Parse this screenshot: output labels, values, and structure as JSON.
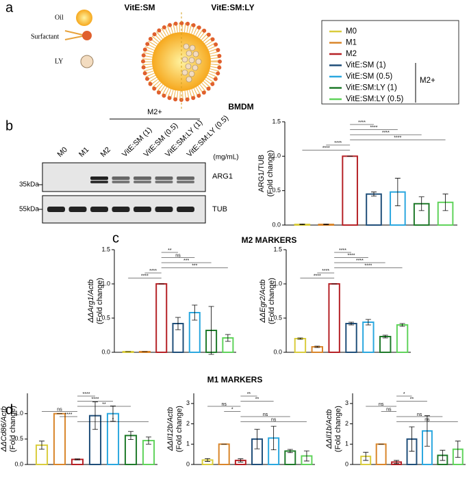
{
  "panels": {
    "a": "a",
    "b": "b",
    "c": "c",
    "d": "d"
  },
  "schematic": {
    "oil": "Oil",
    "surfactant": "Surfactant",
    "ly": "LY",
    "vitesm": "VitE:SM",
    "vitesmly": "VitE:SM:LY"
  },
  "legend": {
    "items": [
      {
        "name": "M0",
        "color": "#d9cc3c"
      },
      {
        "name": "M1",
        "color": "#d9852a"
      },
      {
        "name": "M2",
        "color": "#b52025"
      },
      {
        "name": "VitE:SM (1)",
        "color": "#1f4e79"
      },
      {
        "name": "VitE:SM (0.5)",
        "color": "#2aa7df"
      },
      {
        "name": "VitE:SM:LY (1)",
        "color": "#1f7a2a"
      },
      {
        "name": "VitE:SM:LY (0.5)",
        "color": "#5fd35a"
      }
    ],
    "group": "M2+"
  },
  "blot": {
    "title": "BMDM",
    "group": "M2+",
    "lanes": [
      "M0",
      "M1",
      "M2",
      "VitE:SM (1)",
      "VitE:SM (0.5)",
      "VitE:SM:LY (1)",
      "VitE:SM:LY (0.5)"
    ],
    "unit": "(mg/mL)",
    "bands": [
      {
        "name": "ARG1",
        "marker": "35kDa"
      },
      {
        "name": "TUB",
        "marker": "55kDa"
      }
    ]
  },
  "sections": {
    "c": "M2 MARKERS",
    "d": "M1 MARKERS"
  },
  "chart_data": [
    {
      "type": "bar",
      "ylabel": [
        "ARG1/TUB",
        "(Fold change)"
      ],
      "values": [
        0.01,
        0.01,
        1.0,
        0.45,
        0.48,
        0.31,
        0.33
      ],
      "errors": [
        0.005,
        0.005,
        0,
        0.03,
        0.2,
        0.1,
        0.12
      ],
      "ylim": [
        0,
        1.5
      ],
      "yticks": [
        {
          "value": 0,
          "label": "0.0"
        },
        {
          "value": 0.5,
          "label": "0.5"
        },
        {
          "value": 1,
          "label": "1.0"
        },
        {
          "value": 1.5,
          "label": "1.5"
        }
      ],
      "comparisons": [
        {
          "groups": [
            2,
            3
          ],
          "label": "****"
        },
        {
          "groups": [
            2,
            4
          ],
          "label": "****"
        },
        {
          "groups": [
            2,
            5
          ],
          "label": "****"
        },
        {
          "groups": [
            2,
            6
          ],
          "label": "****"
        },
        {
          "groups": [
            1,
            2
          ],
          "label": "****"
        },
        {
          "groups": [
            0,
            2
          ],
          "label": "****"
        }
      ]
    },
    {
      "type": "bar",
      "ylabel": [
        "ΔΔArg1/Actb",
        "(Fold change)"
      ],
      "values": [
        0.01,
        0.01,
        1.0,
        0.42,
        0.58,
        0.32,
        0.21
      ],
      "errors": [
        0,
        0,
        0,
        0.09,
        0.11,
        0.35,
        0.05
      ],
      "ylim": [
        0,
        1.5
      ],
      "yticks": [
        {
          "value": 0,
          "label": "0.0"
        },
        {
          "value": 0.5,
          "label": "0.5"
        },
        {
          "value": 1,
          "label": "1.0"
        },
        {
          "value": 1.5,
          "label": "1.5"
        }
      ],
      "comparisons": [
        {
          "groups": [
            2,
            3
          ],
          "label": "**"
        },
        {
          "groups": [
            2,
            4
          ],
          "label": "ns"
        },
        {
          "groups": [
            2,
            5
          ],
          "label": "***"
        },
        {
          "groups": [
            2,
            6
          ],
          "label": "***"
        },
        {
          "groups": [
            1,
            2
          ],
          "label": "****"
        },
        {
          "groups": [
            0,
            2
          ],
          "label": "****"
        }
      ]
    },
    {
      "type": "bar",
      "ylabel": [
        "ΔΔEgr2/Actb",
        "(Fold change)"
      ],
      "values": [
        0.2,
        0.08,
        1.0,
        0.42,
        0.44,
        0.23,
        0.4
      ],
      "errors": [
        0.01,
        0.01,
        0,
        0.02,
        0.04,
        0.02,
        0.02
      ],
      "ylim": [
        0,
        1.5
      ],
      "yticks": [
        {
          "value": 0,
          "label": "0.0"
        },
        {
          "value": 0.5,
          "label": "0.5"
        },
        {
          "value": 1,
          "label": "1.0"
        },
        {
          "value": 1.5,
          "label": "1.5"
        }
      ],
      "comparisons": [
        {
          "groups": [
            2,
            3
          ],
          "label": "****"
        },
        {
          "groups": [
            2,
            4
          ],
          "label": "****"
        },
        {
          "groups": [
            2,
            5
          ],
          "label": "****"
        },
        {
          "groups": [
            2,
            6
          ],
          "label": "****"
        },
        {
          "groups": [
            1,
            2
          ],
          "label": "****"
        },
        {
          "groups": [
            0,
            2
          ],
          "label": "****"
        }
      ]
    },
    {
      "type": "bar",
      "ylabel": [
        "ΔΔCd86/Actb",
        "(Fold change)"
      ],
      "values": [
        0.38,
        1.0,
        0.1,
        0.96,
        1.0,
        0.57,
        0.47
      ],
      "errors": [
        0.08,
        0,
        0.01,
        0.27,
        0.15,
        0.08,
        0.07
      ],
      "ylim": [
        0,
        1.4
      ],
      "yticks": [
        {
          "value": 0,
          "label": "0.0"
        },
        {
          "value": 0.5,
          "label": "0.5"
        },
        {
          "value": 1,
          "label": "1.0"
        }
      ],
      "comparisons": [
        {
          "groups": [
            2,
            3
          ],
          "label": "****"
        },
        {
          "groups": [
            2,
            4
          ],
          "label": "****"
        },
        {
          "groups": [
            2,
            5
          ],
          "label": "**"
        },
        {
          "groups": [
            0,
            2
          ],
          "label": "ns"
        },
        {
          "groups": [
            1,
            2
          ],
          "label": "****"
        },
        {
          "groups": [
            2,
            6
          ],
          "label": "*"
        }
      ]
    },
    {
      "type": "bar",
      "ylabel": [
        "ΔΔIl12b/Actb",
        "(Fold change)"
      ],
      "values": [
        0.22,
        1.0,
        0.2,
        1.25,
        1.3,
        0.66,
        0.42
      ],
      "errors": [
        0.07,
        0,
        0.08,
        0.48,
        0.58,
        0.08,
        0.25
      ],
      "ylim": [
        0,
        3.5
      ],
      "yticks": [
        0,
        1,
        2,
        3
      ],
      "comparisons": [
        {
          "groups": [
            2,
            3
          ],
          "label": "**"
        },
        {
          "groups": [
            2,
            4
          ],
          "label": "**"
        },
        {
          "groups": [
            0,
            2
          ],
          "label": "ns"
        },
        {
          "groups": [
            1,
            2
          ],
          "label": "*"
        },
        {
          "groups": [
            2,
            5
          ],
          "label": "ns"
        },
        {
          "groups": [
            2,
            6
          ],
          "label": "ns"
        }
      ]
    },
    {
      "type": "bar",
      "ylabel": [
        "ΔΔIl1b/Actb",
        "(Fold change)"
      ],
      "values": [
        0.4,
        1.0,
        0.12,
        1.25,
        1.65,
        0.45,
        0.75
      ],
      "errors": [
        0.2,
        0,
        0.08,
        0.6,
        0.75,
        0.25,
        0.4
      ],
      "ylim": [
        0,
        3.5
      ],
      "yticks": [
        0,
        1,
        2,
        3
      ],
      "comparisons": [
        {
          "groups": [
            2,
            3
          ],
          "label": "*"
        },
        {
          "groups": [
            2,
            4
          ],
          "label": "**"
        },
        {
          "groups": [
            0,
            2
          ],
          "label": "ns"
        },
        {
          "groups": [
            1,
            2
          ],
          "label": "ns"
        },
        {
          "groups": [
            2,
            5
          ],
          "label": "ns"
        },
        {
          "groups": [
            2,
            6
          ],
          "label": "ns"
        }
      ]
    }
  ]
}
